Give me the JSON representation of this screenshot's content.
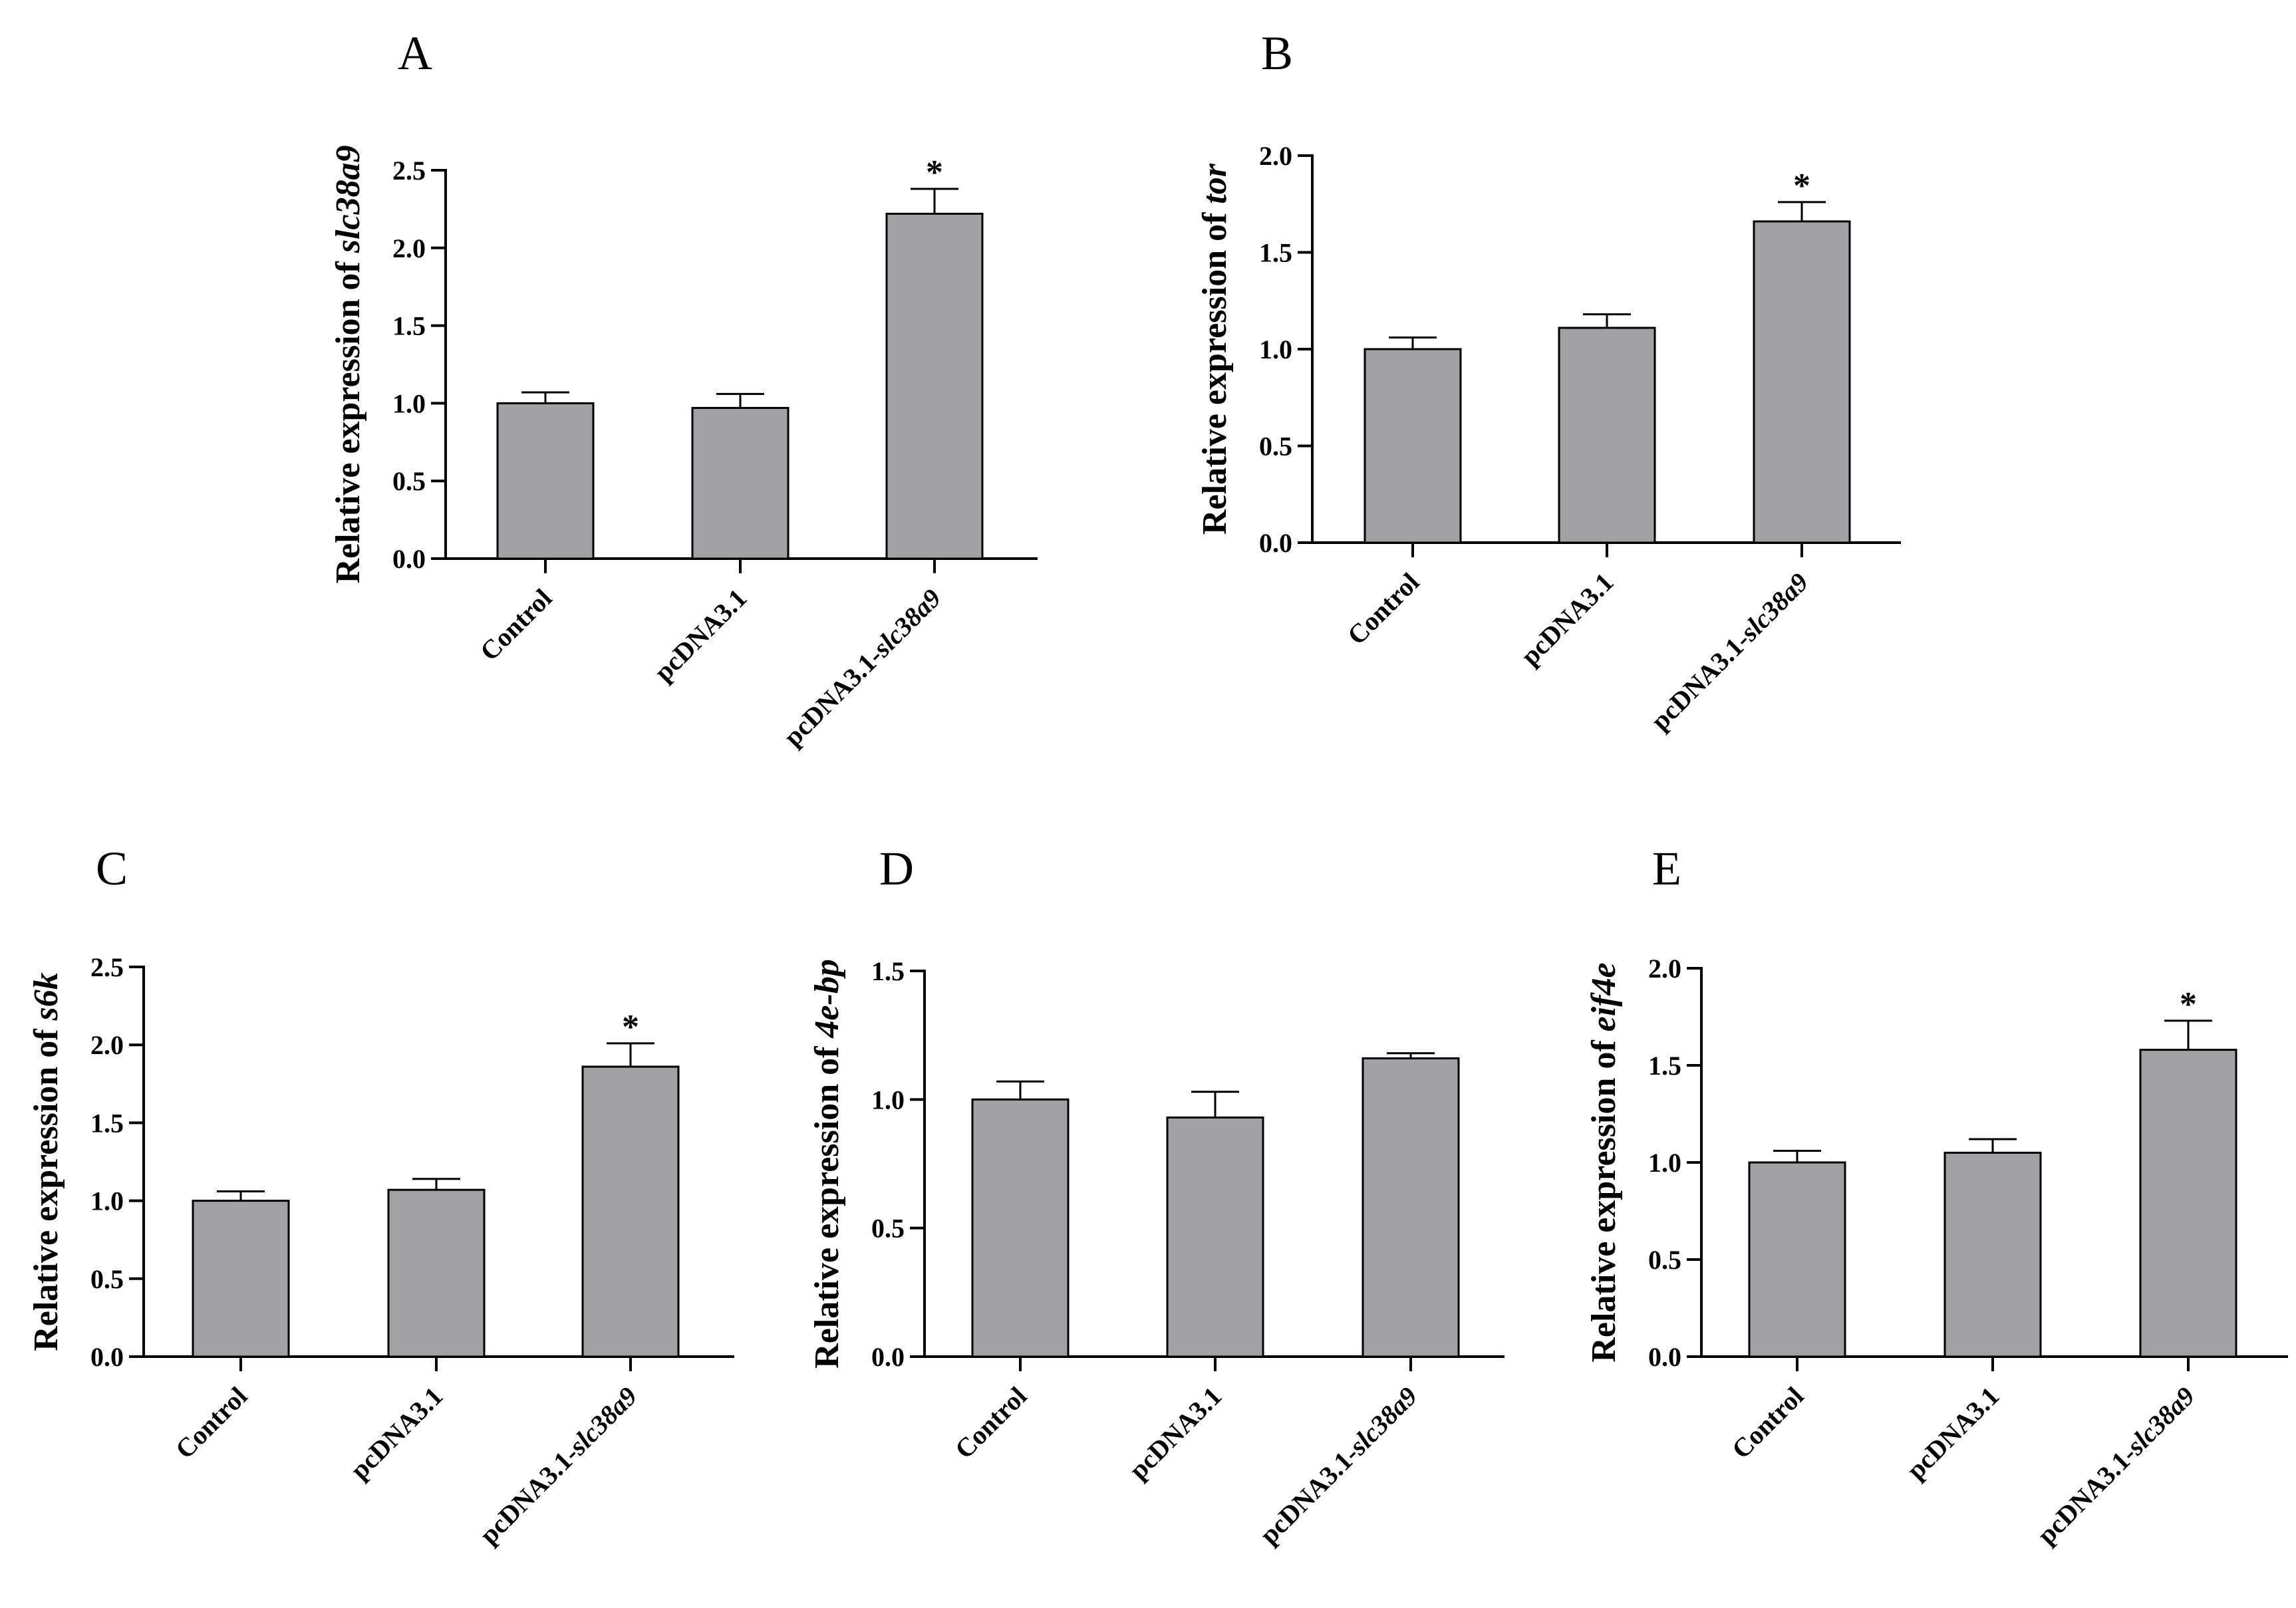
{
  "figure": {
    "bar_color": "#a2a2a5",
    "axis_color": "#000000"
  },
  "chart_data": [
    {
      "panel": "A",
      "type": "bar",
      "ylabel_prefix": "Relative expression of ",
      "ylabel_gene": "slc38a9",
      "categories": [
        {
          "prefix": "Control",
          "italic": ""
        },
        {
          "prefix": "pcDNA3.1",
          "italic": ""
        },
        {
          "prefix": "pcDNA3.1-",
          "italic": "slc38a9"
        }
      ],
      "values": [
        1.0,
        0.97,
        2.22
      ],
      "errors": [
        0.07,
        0.09,
        0.16
      ],
      "significance": [
        "",
        "",
        "*"
      ],
      "ylim": [
        0,
        2.5
      ],
      "yticks": [
        0.0,
        0.5,
        1.0,
        1.5,
        2.0,
        2.5
      ],
      "yticklabels": [
        "0.0",
        "0.5",
        "1.0",
        "1.5",
        "2.0",
        "2.5"
      ]
    },
    {
      "panel": "B",
      "type": "bar",
      "ylabel_prefix": "Relative expression of ",
      "ylabel_gene": "tor",
      "categories": [
        {
          "prefix": "Control",
          "italic": ""
        },
        {
          "prefix": "pcDNA3.1",
          "italic": ""
        },
        {
          "prefix": "pcDNA3.1-",
          "italic": "slc38a9"
        }
      ],
      "values": [
        1.0,
        1.11,
        1.66
      ],
      "errors": [
        0.06,
        0.07,
        0.1
      ],
      "significance": [
        "",
        "",
        "*"
      ],
      "ylim": [
        0,
        2.0
      ],
      "yticks": [
        0.0,
        0.5,
        1.0,
        1.5,
        2.0
      ],
      "yticklabels": [
        "0.0",
        "0.5",
        "1.0",
        "1.5",
        "2.0"
      ]
    },
    {
      "panel": "C",
      "type": "bar",
      "ylabel_prefix": "Relative expression of ",
      "ylabel_gene": "s6k",
      "categories": [
        {
          "prefix": "Control",
          "italic": ""
        },
        {
          "prefix": "pcDNA3.1",
          "italic": ""
        },
        {
          "prefix": "pcDNA3.1-",
          "italic": "slc38a9"
        }
      ],
      "values": [
        1.0,
        1.07,
        1.86
      ],
      "errors": [
        0.06,
        0.07,
        0.15
      ],
      "significance": [
        "",
        "",
        "*"
      ],
      "ylim": [
        0,
        2.5
      ],
      "yticks": [
        0.0,
        0.5,
        1.0,
        1.5,
        2.0,
        2.5
      ],
      "yticklabels": [
        "0.0",
        "0.5",
        "1.0",
        "1.5",
        "2.0",
        "2.5"
      ]
    },
    {
      "panel": "D",
      "type": "bar",
      "ylabel_prefix": "Relative expression of ",
      "ylabel_gene": "4e-bp",
      "categories": [
        {
          "prefix": "Control",
          "italic": ""
        },
        {
          "prefix": "pcDNA3.1",
          "italic": ""
        },
        {
          "prefix": "pcDNA3.1-",
          "italic": "slc38a9"
        }
      ],
      "values": [
        1.0,
        0.93,
        1.16
      ],
      "errors": [
        0.07,
        0.1,
        0.02
      ],
      "significance": [
        "",
        "",
        ""
      ],
      "ylim": [
        0,
        1.5
      ],
      "yticks": [
        0.0,
        0.5,
        1.0,
        1.5
      ],
      "yticklabels": [
        "0.0",
        "0.5",
        "1.0",
        "1.5"
      ]
    },
    {
      "panel": "E",
      "type": "bar",
      "ylabel_prefix": "Relative expression of ",
      "ylabel_gene": "eif4e",
      "categories": [
        {
          "prefix": "Control",
          "italic": ""
        },
        {
          "prefix": "pcDNA3.1",
          "italic": ""
        },
        {
          "prefix": "pcDNA3.1-",
          "italic": "slc38a9"
        }
      ],
      "values": [
        1.0,
        1.05,
        1.58
      ],
      "errors": [
        0.06,
        0.07,
        0.15
      ],
      "significance": [
        "",
        "",
        "*"
      ],
      "ylim": [
        0,
        2.0
      ],
      "yticks": [
        0.0,
        0.5,
        1.0,
        1.5,
        2.0
      ],
      "yticklabels": [
        "0.0",
        "0.5",
        "1.0",
        "1.5",
        "2.0"
      ]
    }
  ]
}
